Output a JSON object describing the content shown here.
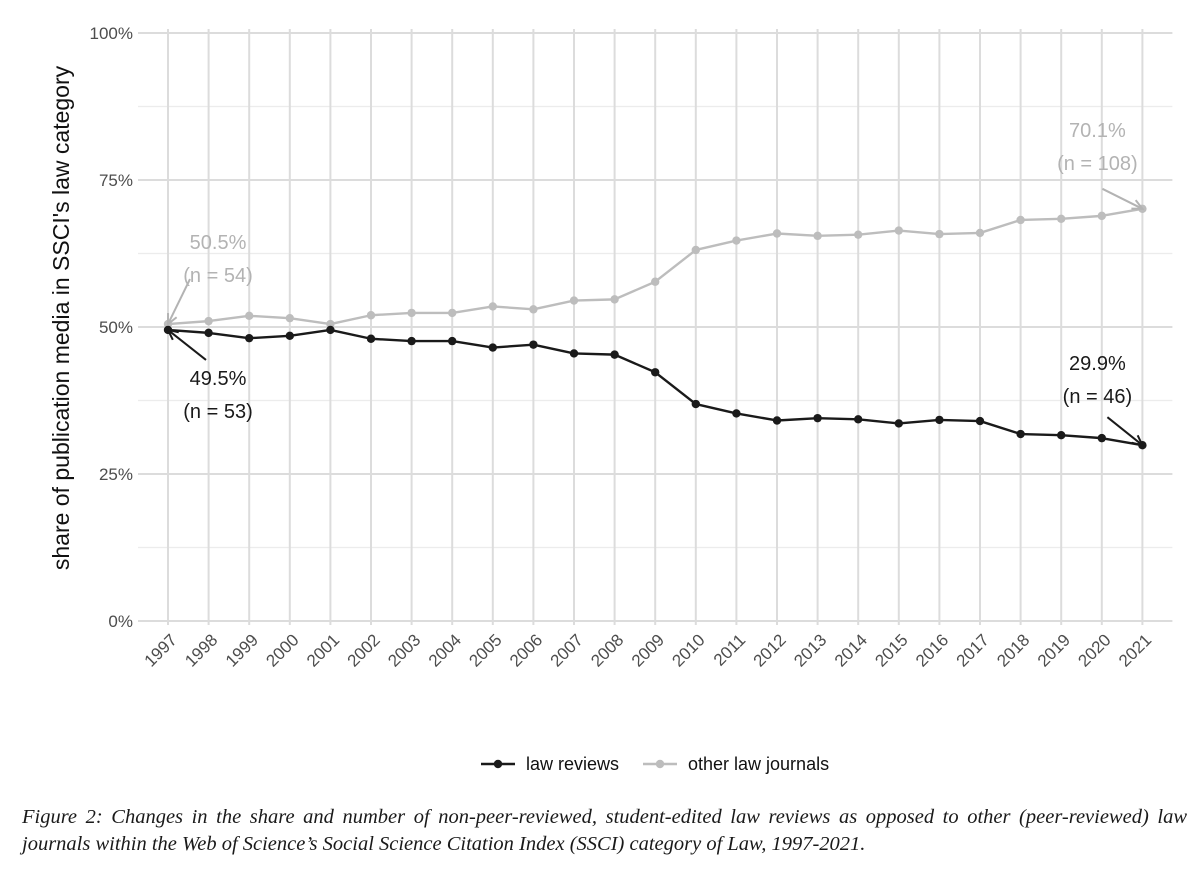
{
  "chart_data": {
    "type": "line",
    "title": "",
    "xlabel": "",
    "ylabel": "share of publication media in SSCI's law category",
    "ylim": [
      0,
      100
    ],
    "yticks": [
      0,
      25,
      50,
      75,
      100
    ],
    "ytick_labels": [
      "0%",
      "25%",
      "50%",
      "75%",
      "100%"
    ],
    "x": [
      "1997",
      "1998",
      "1999",
      "2000",
      "2001",
      "2002",
      "2003",
      "2004",
      "2005",
      "2006",
      "2007",
      "2008",
      "2009",
      "2010",
      "2011",
      "2012",
      "2013",
      "2014",
      "2015",
      "2016",
      "2017",
      "2018",
      "2019",
      "2020",
      "2021"
    ],
    "series": [
      {
        "name": "law reviews",
        "color": "#1a1a1a",
        "values": [
          49.5,
          49.0,
          48.1,
          48.5,
          49.5,
          48.0,
          47.6,
          47.6,
          46.5,
          47.0,
          45.5,
          45.3,
          42.3,
          36.9,
          35.3,
          34.1,
          34.5,
          34.3,
          33.6,
          34.2,
          34.0,
          31.8,
          31.6,
          31.1,
          29.9
        ]
      },
      {
        "name": "other law journals",
        "color": "#bdbdbd",
        "values": [
          50.5,
          51.0,
          51.9,
          51.5,
          50.5,
          52.0,
          52.4,
          52.4,
          53.5,
          53.0,
          54.5,
          54.7,
          57.7,
          63.1,
          64.7,
          65.9,
          65.5,
          65.7,
          66.4,
          65.8,
          66.0,
          68.2,
          68.4,
          68.9,
          70.1
        ]
      }
    ],
    "annotations": [
      {
        "series": "other law journals",
        "x": "1997",
        "lines": [
          "50.5%",
          "(n = 54)"
        ]
      },
      {
        "series": "law reviews",
        "x": "1997",
        "lines": [
          "49.5%",
          "(n = 53)"
        ]
      },
      {
        "series": "other law journals",
        "x": "2021",
        "lines": [
          "70.1%",
          "(n = 108)"
        ]
      },
      {
        "series": "law reviews",
        "x": "2021",
        "lines": [
          "29.9%",
          "(n = 46)"
        ]
      }
    ],
    "legend_position": "bottom",
    "grid": true
  },
  "caption": "Figure 2: Changes in the share and number of non-peer-reviewed, student-edited law reviews as opposed to other (peer-reviewed) law journals within the Web of Science’s Social Science Citation Index (SSCI) category of Law, 1997-2021."
}
